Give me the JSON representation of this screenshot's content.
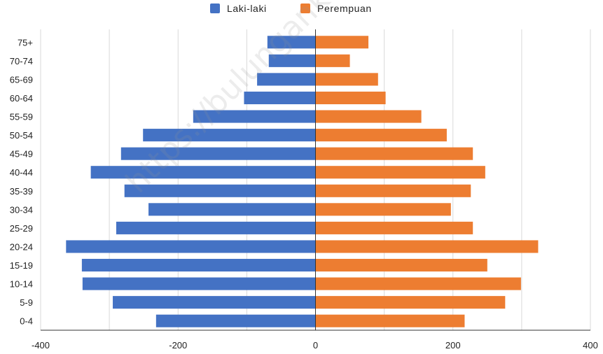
{
  "watermark_text": "https://bulungankab.bps.go.id",
  "chart_data": {
    "type": "bar",
    "orientation": "horizontal",
    "categories": [
      "75+",
      "70-74",
      "65-69",
      "60-64",
      "55-59",
      "50-54",
      "45-49",
      "40-44",
      "35-39",
      "30-34",
      "25-29",
      "20-24",
      "15-19",
      "10-14",
      "5-9",
      "0-4"
    ],
    "series": [
      {
        "name": "Laki-laki",
        "color": "#4472C4",
        "values": [
          -70,
          -68,
          -85,
          -104,
          -178,
          -251,
          -283,
          -327,
          -278,
          -243,
          -290,
          -363,
          -340,
          -339,
          -295,
          -232
        ]
      },
      {
        "name": "Perempuan",
        "color": "#ED7D31",
        "values": [
          77,
          50,
          91,
          102,
          154,
          191,
          229,
          247,
          226,
          197,
          229,
          324,
          250,
          299,
          276,
          217
        ]
      }
    ],
    "xlim": [
      -400,
      400
    ],
    "x_ticks": [
      "-400",
      "-200",
      "0",
      "200",
      "400"
    ],
    "grid": true,
    "legend_position": "top"
  }
}
